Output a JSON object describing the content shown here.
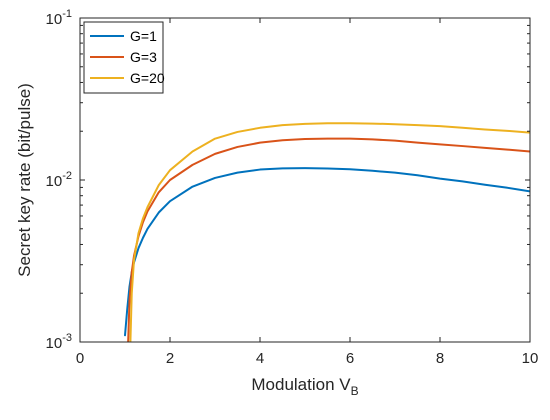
{
  "chart_data": {
    "type": "line",
    "title": "",
    "xlabel": "Modulation V",
    "xlabel_sub": "B",
    "ylabel": "Secret key rate (bit/pulse)",
    "xlim": [
      0,
      10
    ],
    "ylim": [
      0.001,
      0.1
    ],
    "yscale": "log",
    "grid": false,
    "legend_position": "top-left",
    "x_ticks": [
      0,
      2,
      4,
      6,
      8,
      10
    ],
    "x_tick_labels": [
      "0",
      "2",
      "4",
      "6",
      "8",
      "10"
    ],
    "y_ticks": [
      0.001,
      0.01,
      0.1
    ],
    "y_tick_labels": [
      {
        "base": "10",
        "exp": "-3"
      },
      {
        "base": "10",
        "exp": "-2"
      },
      {
        "base": "10",
        "exp": "-1"
      }
    ],
    "series": [
      {
        "name": "G=1",
        "color": "#0072BD",
        "x": [
          1.0,
          1.05,
          1.1,
          1.15,
          1.2,
          1.3,
          1.4,
          1.5,
          1.75,
          2.0,
          2.5,
          3.0,
          3.5,
          4.0,
          4.5,
          5.0,
          5.5,
          6.0,
          6.5,
          7.0,
          7.5,
          8.0,
          8.5,
          9.0,
          9.5,
          10.0
        ],
        "y": [
          0.0011,
          0.0016,
          0.0022,
          0.0027,
          0.0031,
          0.0038,
          0.0044,
          0.005,
          0.0063,
          0.0074,
          0.0091,
          0.0103,
          0.0111,
          0.0116,
          0.0118,
          0.01183,
          0.01178,
          0.01165,
          0.0114,
          0.0111,
          0.0107,
          0.0102,
          0.0098,
          0.00935,
          0.00895,
          0.0085
        ]
      },
      {
        "name": "G=3",
        "color": "#D95319",
        "x": [
          1.07,
          1.1,
          1.15,
          1.2,
          1.3,
          1.4,
          1.5,
          1.75,
          2.0,
          2.5,
          3.0,
          3.5,
          4.0,
          4.5,
          5.0,
          5.5,
          6.0,
          6.5,
          7.0,
          7.5,
          8.0,
          8.5,
          9.0,
          9.5,
          10.0
        ],
        "y": [
          0.001,
          0.0018,
          0.0027,
          0.0034,
          0.0045,
          0.0055,
          0.0064,
          0.0084,
          0.01,
          0.0124,
          0.0145,
          0.016,
          0.017,
          0.0176,
          0.0179,
          0.018,
          0.018,
          0.0178,
          0.0175,
          0.017,
          0.0166,
          0.0162,
          0.0158,
          0.0154,
          0.015
        ]
      },
      {
        "name": "G=20",
        "color": "#EDB120",
        "x": [
          1.12,
          1.15,
          1.2,
          1.3,
          1.4,
          1.5,
          1.75,
          2.0,
          2.5,
          3.0,
          3.5,
          4.0,
          4.5,
          5.0,
          5.5,
          6.0,
          6.5,
          7.0,
          7.5,
          8.0,
          8.5,
          9.0,
          9.5,
          10.0
        ],
        "y": [
          0.001,
          0.002,
          0.0032,
          0.0047,
          0.0058,
          0.0068,
          0.0093,
          0.0115,
          0.015,
          0.018,
          0.0198,
          0.021,
          0.0218,
          0.0222,
          0.0224,
          0.0224,
          0.0223,
          0.0221,
          0.0218,
          0.0215,
          0.021,
          0.0205,
          0.0201,
          0.0196
        ]
      }
    ]
  }
}
